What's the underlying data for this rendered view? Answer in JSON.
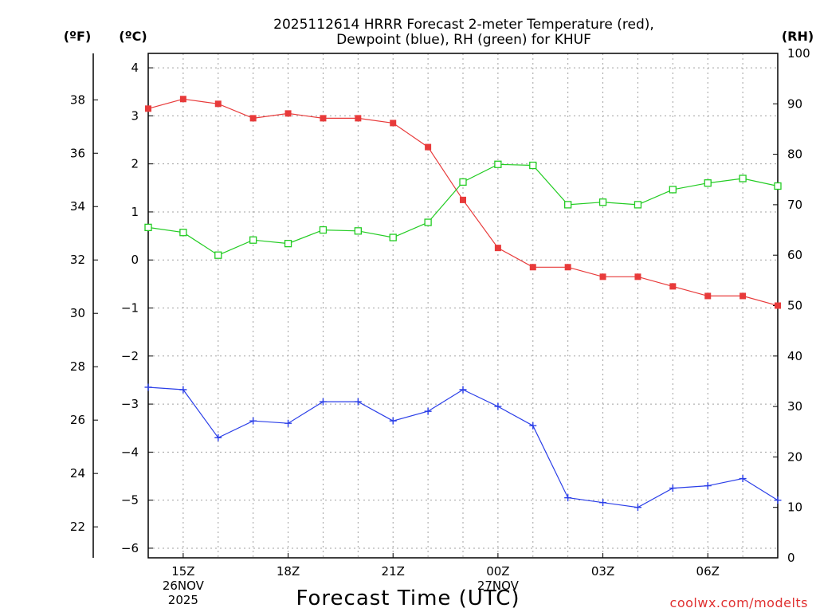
{
  "chart_data": {
    "type": "line",
    "title_lines": [
      "2025112614 HRRR Forecast 2-meter Temperature (red),",
      "Dewpoint (blue), RH (green) for KHUF"
    ],
    "xlabel": "Forecast Time (UTC)",
    "credit": "coolwx.com/modelts",
    "axes": {
      "celsius": {
        "label": "(ºC)",
        "min": -6.2,
        "max": 4.3,
        "ticks": [
          -6,
          -5,
          -4,
          -3,
          -2,
          -1,
          0,
          1,
          2,
          3,
          4
        ]
      },
      "fahrenheit": {
        "label": "(ºF)",
        "ticks": [
          22,
          24,
          26,
          28,
          30,
          32,
          34,
          36,
          38
        ]
      },
      "rh": {
        "label": "(RH)",
        "min": 0,
        "max": 100,
        "ticks": [
          0,
          10,
          20,
          30,
          40,
          50,
          60,
          70,
          80,
          90,
          100
        ]
      }
    },
    "x_hours": [
      14,
      15,
      16,
      17,
      18,
      19,
      20,
      21,
      22,
      23,
      24,
      25,
      26,
      27,
      28,
      29,
      30,
      31,
      32
    ],
    "x_range": [
      14,
      32
    ],
    "x_ticks": [
      {
        "hour": 15,
        "lines": [
          "15Z",
          "26NOV",
          "2025"
        ]
      },
      {
        "hour": 18,
        "lines": [
          "18Z"
        ]
      },
      {
        "hour": 21,
        "lines": [
          "21Z"
        ]
      },
      {
        "hour": 24,
        "lines": [
          "00Z",
          "27NOV"
        ]
      },
      {
        "hour": 27,
        "lines": [
          "03Z"
        ]
      },
      {
        "hour": 30,
        "lines": [
          "06Z"
        ]
      }
    ],
    "series": [
      {
        "name": "Temperature",
        "axis": "celsius",
        "color": "#e83a3a",
        "marker": "filled-square",
        "values": [
          3.15,
          3.35,
          3.25,
          2.95,
          3.05,
          2.95,
          2.95,
          2.85,
          2.35,
          1.25,
          0.25,
          -0.15,
          -0.15,
          -0.35,
          -0.35,
          -0.55,
          -0.75,
          -0.75,
          -0.95
        ]
      },
      {
        "name": "Dewpoint",
        "axis": "celsius",
        "color": "#2a3ee8",
        "marker": "plus",
        "values": [
          -2.65,
          -2.7,
          -3.7,
          -3.35,
          -3.4,
          -2.95,
          -2.95,
          -3.35,
          -3.15,
          -2.7,
          -3.05,
          -3.45,
          -4.95,
          -5.05,
          -5.15,
          -4.75,
          -4.7,
          -4.55,
          -5.0
        ]
      },
      {
        "name": "RH",
        "axis": "rh",
        "color": "#22cc22",
        "marker": "open-square",
        "values": [
          65.5,
          64.5,
          60.0,
          63.0,
          62.3,
          65.0,
          64.8,
          63.5,
          66.5,
          74.5,
          78.0,
          77.8,
          70.0,
          70.5,
          70.0,
          73.0,
          74.3,
          75.2,
          73.7
        ]
      }
    ]
  }
}
